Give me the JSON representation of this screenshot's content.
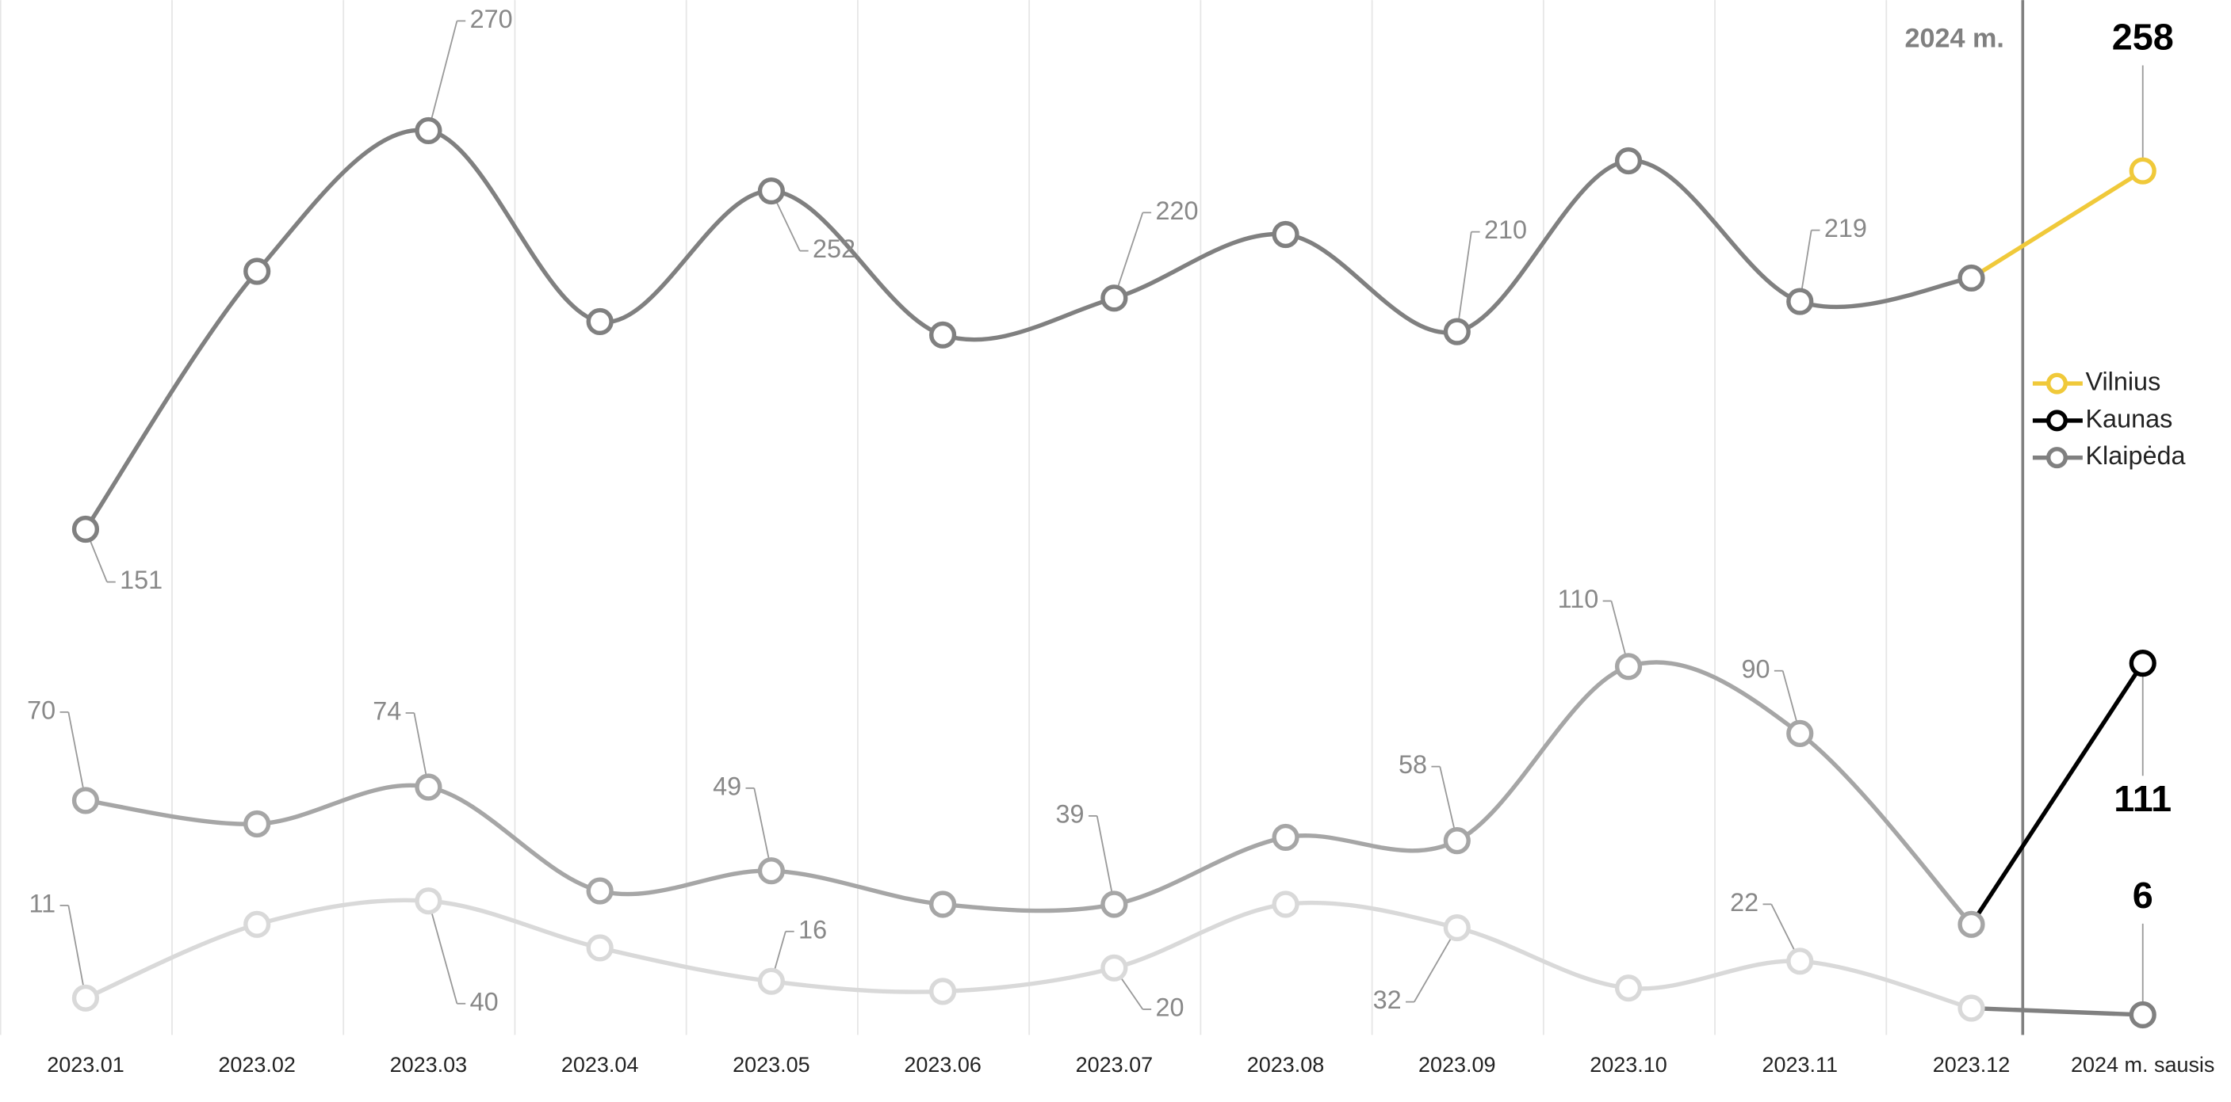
{
  "chart_data": {
    "type": "line",
    "categories": [
      "2023.01",
      "2023.02",
      "2023.03",
      "2023.04",
      "2023.05",
      "2023.06",
      "2023.07",
      "2023.08",
      "2023.09",
      "2023.10",
      "2023.11",
      "2023.12",
      "2024 m. sausis"
    ],
    "highlight_label": "2024 m.",
    "ylim": [
      0,
      309
    ],
    "legend": "right",
    "series": [
      {
        "name": "Vilnius",
        "color": "#f0c93a",
        "history_color": "#808080",
        "values": [
          151,
          228,
          270,
          213,
          252,
          209,
          220,
          239,
          210,
          261,
          219,
          226,
          258
        ],
        "value_labels": [
          "151",
          null,
          "270",
          null,
          "252",
          null,
          "220",
          null,
          "210",
          null,
          "219",
          null,
          "258"
        ]
      },
      {
        "name": "Kaunas",
        "color": "#000000",
        "history_color": "#a6a6a6",
        "values": [
          70,
          63,
          74,
          43,
          49,
          39,
          39,
          59,
          58,
          110,
          90,
          33,
          111
        ],
        "value_labels": [
          "70",
          null,
          "74",
          null,
          "49",
          null,
          "39",
          null,
          "58",
          "110",
          "90",
          null,
          "111"
        ]
      },
      {
        "name": "Klaipėda",
        "color": "#808080",
        "history_color": "#d9d9d9",
        "values": [
          11,
          33,
          40,
          26,
          16,
          13,
          20,
          39,
          32,
          14,
          22,
          8,
          6
        ],
        "value_labels": [
          "11",
          null,
          "40",
          null,
          "16",
          null,
          "20",
          null,
          "32",
          null,
          "22",
          null,
          "6"
        ]
      }
    ]
  }
}
